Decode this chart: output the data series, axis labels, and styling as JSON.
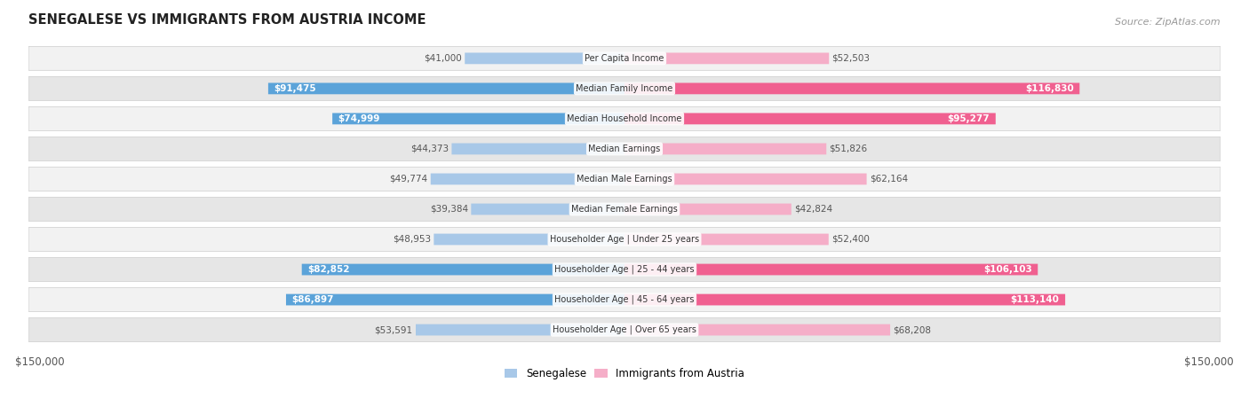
{
  "title": "SENEGALESE VS IMMIGRANTS FROM AUSTRIA INCOME",
  "source": "Source: ZipAtlas.com",
  "categories": [
    "Per Capita Income",
    "Median Family Income",
    "Median Household Income",
    "Median Earnings",
    "Median Male Earnings",
    "Median Female Earnings",
    "Householder Age | Under 25 years",
    "Householder Age | 25 - 44 years",
    "Householder Age | 45 - 64 years",
    "Householder Age | Over 65 years"
  ],
  "senegalese": [
    41000,
    91475,
    74999,
    44373,
    49774,
    39384,
    48953,
    82852,
    86897,
    53591
  ],
  "austria": [
    52503,
    116830,
    95277,
    51826,
    62164,
    42824,
    52400,
    106103,
    113140,
    68208
  ],
  "max_val": 150000,
  "color_senegalese_light": "#a8c8e8",
  "color_senegalese_dark": "#5ba3d9",
  "color_austria_light": "#f5aec8",
  "color_austria_dark": "#f06090",
  "row_bg_even": "#f2f2f2",
  "row_bg_odd": "#e6e6e6",
  "highlight_rows": [
    1,
    2,
    7,
    8
  ],
  "label_color_dark": "#555555",
  "label_color_white": "#ffffff"
}
